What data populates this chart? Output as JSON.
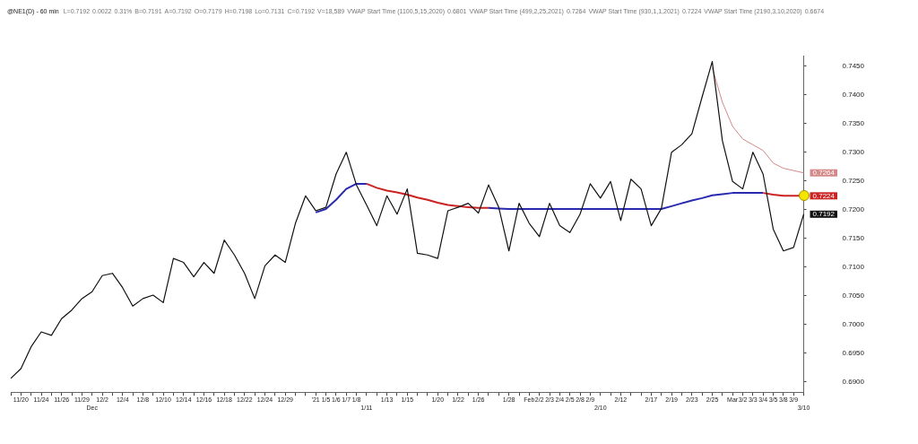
{
  "chart_data": {
    "type": "line",
    "title": "@NE1(D) - 60 min",
    "annotations": [
      "L=0.7192",
      "0.0022",
      "0.31%",
      "B=0.7191",
      "A=0.7192",
      "O=0.7179",
      "H=0.7198",
      "Lo=0.7131",
      "C=0.7192",
      "V=18,589",
      "VWAP Start Time (1100,5,15,2020)",
      "0.6801",
      "VWAP Start Time (499,2,25,2021)",
      "0.7264",
      "VWAP Start Time (930,1,1,2021)",
      "0.7224",
      "VWAP Start Time (2190,3,10,2020)",
      "0.6674"
    ],
    "categories": [
      null,
      "11/20",
      null,
      "11/24",
      null,
      "11/26",
      null,
      "11/29",
      "Dec",
      "12/2",
      null,
      "12/4",
      null,
      "12/8",
      null,
      "12/10",
      null,
      "12/14",
      null,
      "12/16",
      null,
      "12/18",
      null,
      "12/22",
      null,
      "12/24",
      null,
      "12/29",
      null,
      null,
      "'21",
      "1/5",
      "1/6",
      "1/7",
      "1/8",
      "1/11",
      null,
      "1/13",
      null,
      "1/15",
      null,
      null,
      "1/20",
      null,
      "1/22",
      null,
      "1/26",
      null,
      null,
      "1/28",
      null,
      "Feb",
      "2/2",
      "2/3",
      "2/4",
      "2/5",
      "2/8",
      "2/9",
      "2/10",
      null,
      "2/12",
      null,
      null,
      "2/17",
      null,
      "2/19",
      null,
      "2/23",
      null,
      "2/25",
      null,
      "Mar",
      "3/2",
      "3/3",
      "3/4",
      "3/5",
      "3/8",
      "3/9",
      "3/10"
    ],
    "series": [
      {
        "color": "#111111",
        "values": [
          0.6906,
          0.6923,
          0.6961,
          0.6987,
          0.6981,
          0.701,
          0.7025,
          0.7045,
          0.7057,
          0.7085,
          0.7089,
          0.7064,
          0.7032,
          0.7045,
          0.7051,
          0.7038,
          0.7115,
          0.7108,
          0.7083,
          0.7108,
          0.7089,
          0.7147,
          0.7121,
          0.7089,
          0.7045,
          0.7102,
          0.7121,
          0.7108,
          0.7176,
          0.7224,
          0.7198,
          0.7204,
          0.7262,
          0.73,
          0.7243,
          0.7208,
          0.7172,
          0.7224,
          0.7192,
          0.7236,
          0.7124,
          0.7121,
          0.7115,
          0.7198,
          0.7204,
          0.7211,
          0.7194,
          0.7243,
          0.7204,
          0.7128,
          0.7211,
          0.7176,
          0.7153,
          0.7211,
          0.7172,
          0.716,
          0.7192,
          0.7245,
          0.722,
          0.7249,
          0.7181,
          0.7253,
          0.7236,
          0.7172,
          0.7202,
          0.73,
          0.7313,
          0.7332,
          0.7396,
          0.7458,
          0.732,
          0.7249,
          0.7236,
          0.73,
          0.7262,
          0.7166,
          0.7128,
          0.7134,
          0.7192
        ],
        "value_labels": [
          null,
          null,
          null,
          null,
          null,
          null,
          null,
          null,
          null,
          null,
          null,
          null,
          null,
          null,
          null,
          null,
          null,
          null,
          null,
          null,
          null,
          null,
          null,
          null,
          null,
          null,
          null,
          null,
          null,
          null,
          null,
          null,
          null,
          null,
          null,
          null,
          null,
          null,
          null,
          null,
          null,
          null,
          null,
          null,
          null,
          null,
          null,
          null,
          null,
          null,
          null,
          null,
          null,
          null,
          null,
          null,
          null,
          null,
          null,
          null,
          null,
          null,
          null,
          null,
          null,
          null,
          null,
          null,
          null,
          null,
          null,
          null,
          null,
          null,
          null,
          null,
          null,
          null,
          "0.7192"
        ]
      },
      {
        "color": "#cc2222",
        "values": [
          null,
          null,
          null,
          null,
          null,
          null,
          null,
          null,
          null,
          null,
          null,
          null,
          null,
          null,
          null,
          null,
          null,
          null,
          null,
          null,
          null,
          null,
          null,
          null,
          null,
          null,
          null,
          null,
          null,
          null,
          null,
          null,
          null,
          null,
          null,
          0.7245,
          0.7238,
          0.7233,
          0.723,
          0.7226,
          0.7221,
          0.7217,
          0.7212,
          0.7208,
          0.7206,
          0.7204,
          0.7203,
          0.7203,
          null,
          null,
          null,
          null,
          null,
          null,
          null,
          null,
          null,
          null,
          null,
          null,
          null,
          null,
          null,
          null,
          null,
          null,
          null,
          null,
          null,
          null,
          null,
          null,
          null,
          null,
          0.7229,
          0.7226,
          0.7224,
          0.7224,
          0.7224
        ],
        "value_labels": [
          null,
          null,
          null,
          null,
          null,
          null,
          null,
          null,
          null,
          null,
          null,
          null,
          null,
          null,
          null,
          null,
          null,
          null,
          null,
          null,
          null,
          null,
          null,
          null,
          null,
          null,
          null,
          null,
          null,
          null,
          null,
          null,
          null,
          null,
          null,
          null,
          null,
          null,
          null,
          null,
          null,
          null,
          null,
          null,
          null,
          null,
          null,
          null,
          null,
          null,
          null,
          null,
          null,
          null,
          null,
          null,
          null,
          null,
          null,
          null,
          null,
          null,
          null,
          null,
          null,
          null,
          null,
          null,
          null,
          null,
          null,
          null,
          null,
          null,
          null,
          null,
          null,
          null,
          "0.7224"
        ]
      },
      {
        "color": "#2a2ab0",
        "values": [
          null,
          null,
          null,
          null,
          null,
          null,
          null,
          null,
          null,
          null,
          null,
          null,
          null,
          null,
          null,
          null,
          null,
          null,
          null,
          null,
          null,
          null,
          null,
          null,
          null,
          null,
          null,
          null,
          null,
          null,
          0.7195,
          0.7201,
          0.7217,
          0.7236,
          0.7245,
          0.7245,
          null,
          null,
          null,
          null,
          null,
          null,
          null,
          null,
          null,
          null,
          null,
          0.7203,
          0.7202,
          0.7201,
          0.7201,
          0.7201,
          0.7201,
          0.7201,
          0.7201,
          0.7201,
          0.7201,
          0.7201,
          0.7201,
          0.7201,
          0.7201,
          0.7201,
          0.7201,
          0.7201,
          0.7201,
          0.7206,
          0.7211,
          0.7216,
          0.722,
          0.7225,
          0.7227,
          0.7229,
          0.7229,
          0.7229,
          0.7229,
          null,
          null,
          null,
          null
        ]
      },
      {
        "color": "#d48888",
        "values": [
          null,
          null,
          null,
          null,
          null,
          null,
          null,
          null,
          null,
          null,
          null,
          null,
          null,
          null,
          null,
          null,
          null,
          null,
          null,
          null,
          null,
          null,
          null,
          null,
          null,
          null,
          null,
          null,
          null,
          null,
          null,
          null,
          null,
          null,
          null,
          null,
          null,
          null,
          null,
          null,
          null,
          null,
          null,
          null,
          null,
          null,
          null,
          null,
          null,
          null,
          null,
          null,
          null,
          null,
          null,
          null,
          null,
          null,
          null,
          null,
          null,
          null,
          null,
          null,
          null,
          null,
          null,
          null,
          null,
          0.7447,
          0.7387,
          0.7345,
          0.7323,
          0.7313,
          0.7303,
          0.7281,
          0.7272,
          0.7268,
          0.7264
        ],
        "value_labels": [
          null,
          null,
          null,
          null,
          null,
          null,
          null,
          null,
          null,
          null,
          null,
          null,
          null,
          null,
          null,
          null,
          null,
          null,
          null,
          null,
          null,
          null,
          null,
          null,
          null,
          null,
          null,
          null,
          null,
          null,
          null,
          null,
          null,
          null,
          null,
          null,
          null,
          null,
          null,
          null,
          null,
          null,
          null,
          null,
          null,
          null,
          null,
          null,
          null,
          null,
          null,
          null,
          null,
          null,
          null,
          null,
          null,
          null,
          null,
          null,
          null,
          null,
          null,
          null,
          null,
          null,
          null,
          null,
          null,
          null,
          null,
          null,
          null,
          null,
          null,
          null,
          null,
          null,
          "0.7264"
        ]
      }
    ],
    "ylim": [
      0.6882,
      0.7467
    ],
    "yticks": [
      {
        "value": 0.69,
        "label": "0.6900"
      },
      {
        "value": 0.695,
        "label": "0.6950"
      },
      {
        "value": 0.7,
        "label": "0.7000"
      },
      {
        "value": 0.705,
        "label": "0.7050"
      },
      {
        "value": 0.71,
        "label": "0.7100"
      },
      {
        "value": 0.715,
        "label": "0.7150"
      },
      {
        "value": 0.72,
        "label": "0.7200"
      },
      {
        "value": 0.725,
        "label": "0.7250"
      },
      {
        "value": 0.73,
        "label": "0.7300"
      },
      {
        "value": 0.735,
        "label": "0.7350"
      },
      {
        "value": 0.74,
        "label": "0.7400"
      },
      {
        "value": 0.745,
        "label": "0.7450"
      }
    ],
    "legend": false,
    "marker": "none"
  }
}
